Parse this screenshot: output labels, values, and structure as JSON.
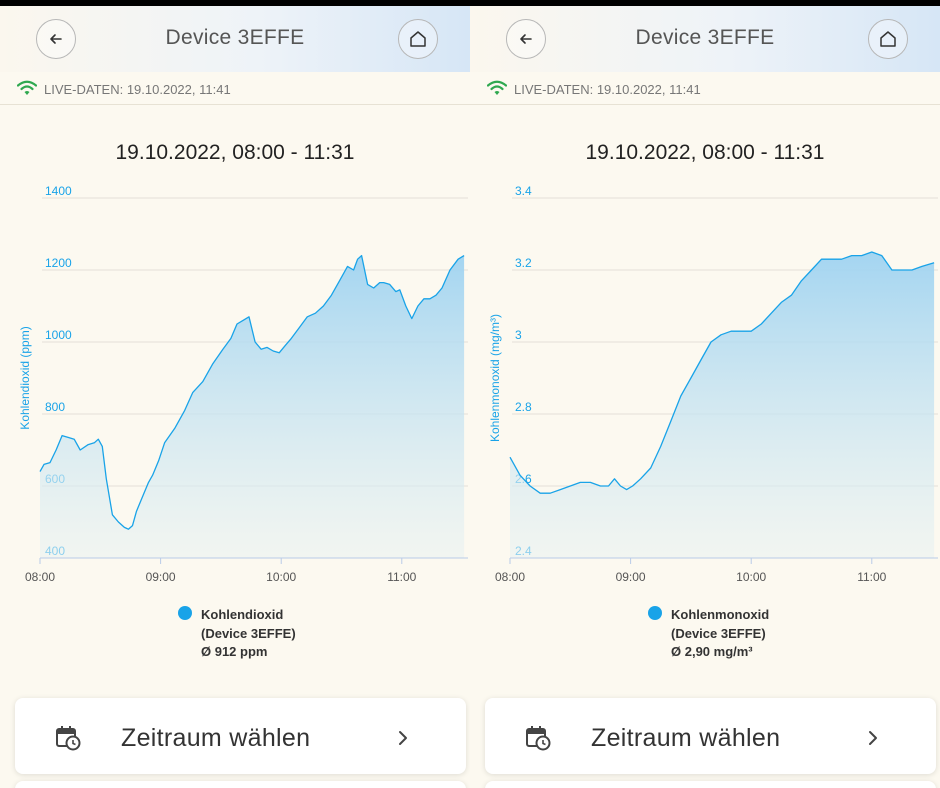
{
  "screens": [
    {
      "header": {
        "title": "Device 3EFFE",
        "back_icon": "arrow-left-icon",
        "home_icon": "home-icon"
      },
      "live": {
        "text": "LIVE-DATEN: 19.10.2022, 11:41",
        "icon": "wifi-icon",
        "color": "#2fa84f"
      },
      "date_range": "19.10.2022, 08:00 - 11:31",
      "legend": {
        "line1": "Kohlendioxid",
        "line2": "(Device 3EFFE)",
        "line3": "Ø 912 ppm"
      },
      "button": {
        "label": "Zeitraum wählen",
        "icon": "calendar-clock-icon"
      },
      "chart_data": {
        "type": "area",
        "ylabel": "Kohlendioxid (ppm)",
        "ylim": [
          400,
          1400
        ],
        "yticks": [
          "400",
          "600",
          "800",
          "1000",
          "1200",
          "1400"
        ],
        "xticks": [
          "08:00",
          "09:00",
          "10:00",
          "11:00"
        ],
        "xlim": [
          "08:00",
          "11:31"
        ],
        "color": "#19a3e8",
        "series": [
          {
            "name": "Kohlendioxid",
            "points": [
              [
                "08:00",
                640
              ],
              [
                "08:02",
                660
              ],
              [
                "08:05",
                665
              ],
              [
                "08:08",
                700
              ],
              [
                "08:11",
                740
              ],
              [
                "08:14",
                735
              ],
              [
                "08:17",
                730
              ],
              [
                "08:20",
                700
              ],
              [
                "08:24",
                715
              ],
              [
                "08:27",
                720
              ],
              [
                "08:29",
                730
              ],
              [
                "08:31",
                710
              ],
              [
                "08:33",
                620
              ],
              [
                "08:36",
                520
              ],
              [
                "08:39",
                500
              ],
              [
                "08:42",
                485
              ],
              [
                "08:44",
                480
              ],
              [
                "08:46",
                490
              ],
              [
                "08:48",
                530
              ],
              [
                "08:51",
                570
              ],
              [
                "08:54",
                610
              ],
              [
                "08:56",
                630
              ],
              [
                "08:59",
                670
              ],
              [
                "09:02",
                720
              ],
              [
                "09:07",
                760
              ],
              [
                "09:12",
                810
              ],
              [
                "09:16",
                860
              ],
              [
                "09:21",
                890
              ],
              [
                "09:26",
                940
              ],
              [
                "09:31",
                980
              ],
              [
                "09:35",
                1010
              ],
              [
                "09:38",
                1050
              ],
              [
                "09:41",
                1060
              ],
              [
                "09:44",
                1070
              ],
              [
                "09:47",
                1000
              ],
              [
                "09:50",
                980
              ],
              [
                "09:53",
                985
              ],
              [
                "09:56",
                975
              ],
              [
                "09:59",
                970
              ],
              [
                "10:02",
                990
              ],
              [
                "10:05",
                1010
              ],
              [
                "10:09",
                1040
              ],
              [
                "10:13",
                1070
              ],
              [
                "10:17",
                1080
              ],
              [
                "10:21",
                1100
              ],
              [
                "10:25",
                1130
              ],
              [
                "10:29",
                1170
              ],
              [
                "10:33",
                1210
              ],
              [
                "10:36",
                1200
              ],
              [
                "10:38",
                1230
              ],
              [
                "10:40",
                1240
              ],
              [
                "10:43",
                1160
              ],
              [
                "10:46",
                1150
              ],
              [
                "10:49",
                1165
              ],
              [
                "10:51",
                1165
              ],
              [
                "10:54",
                1160
              ],
              [
                "10:57",
                1140
              ],
              [
                "10:59",
                1145
              ],
              [
                "11:02",
                1100
              ],
              [
                "11:05",
                1065
              ],
              [
                "11:08",
                1100
              ],
              [
                "11:11",
                1120
              ],
              [
                "11:14",
                1120
              ],
              [
                "11:17",
                1130
              ],
              [
                "11:20",
                1150
              ],
              [
                "11:24",
                1200
              ],
              [
                "11:28",
                1230
              ],
              [
                "11:31",
                1240
              ]
            ]
          }
        ]
      }
    },
    {
      "header": {
        "title": "Device 3EFFE",
        "back_icon": "arrow-left-icon",
        "home_icon": "home-icon"
      },
      "live": {
        "text": "LIVE-DATEN: 19.10.2022, 11:41",
        "icon": "wifi-icon",
        "color": "#2fa84f"
      },
      "date_range": "19.10.2022, 08:00 - 11:31",
      "legend": {
        "line1": "Kohlenmonoxid",
        "line2": "(Device 3EFFE)",
        "line3": "Ø 2,90 mg/m³"
      },
      "button": {
        "label": "Zeitraum wählen",
        "icon": "calendar-clock-icon"
      },
      "chart_data": {
        "type": "area",
        "ylabel": "Kohlenmonoxid (mg/m³)",
        "ylim": [
          2.4,
          3.4
        ],
        "yticks": [
          "2.4",
          "2.6",
          "2.8",
          "3",
          "3.2",
          "3.4"
        ],
        "xticks": [
          "08:00",
          "09:00",
          "10:00",
          "11:00"
        ],
        "xlim": [
          "08:00",
          "11:31"
        ],
        "color": "#19a3e8",
        "series": [
          {
            "name": "Kohlenmonoxid",
            "points": [
              [
                "08:00",
                2.68
              ],
              [
                "08:05",
                2.63
              ],
              [
                "08:10",
                2.6
              ],
              [
                "08:15",
                2.58
              ],
              [
                "08:20",
                2.58
              ],
              [
                "08:25",
                2.59
              ],
              [
                "08:30",
                2.6
              ],
              [
                "08:35",
                2.61
              ],
              [
                "08:40",
                2.61
              ],
              [
                "08:45",
                2.6
              ],
              [
                "08:49",
                2.6
              ],
              [
                "08:52",
                2.62
              ],
              [
                "08:55",
                2.6
              ],
              [
                "08:58",
                2.59
              ],
              [
                "09:01",
                2.6
              ],
              [
                "09:05",
                2.62
              ],
              [
                "09:10",
                2.65
              ],
              [
                "09:15",
                2.71
              ],
              [
                "09:20",
                2.78
              ],
              [
                "09:25",
                2.85
              ],
              [
                "09:30",
                2.9
              ],
              [
                "09:35",
                2.95
              ],
              [
                "09:40",
                3.0
              ],
              [
                "09:45",
                3.02
              ],
              [
                "09:50",
                3.03
              ],
              [
                "09:55",
                3.03
              ],
              [
                "10:00",
                3.03
              ],
              [
                "10:05",
                3.05
              ],
              [
                "10:10",
                3.08
              ],
              [
                "10:15",
                3.11
              ],
              [
                "10:20",
                3.13
              ],
              [
                "10:25",
                3.17
              ],
              [
                "10:30",
                3.2
              ],
              [
                "10:35",
                3.23
              ],
              [
                "10:40",
                3.23
              ],
              [
                "10:45",
                3.23
              ],
              [
                "10:50",
                3.24
              ],
              [
                "10:55",
                3.24
              ],
              [
                "11:00",
                3.25
              ],
              [
                "11:05",
                3.24
              ],
              [
                "11:10",
                3.2
              ],
              [
                "11:15",
                3.2
              ],
              [
                "11:20",
                3.2
              ],
              [
                "11:25",
                3.21
              ],
              [
                "11:31",
                3.22
              ]
            ]
          }
        ]
      }
    }
  ]
}
